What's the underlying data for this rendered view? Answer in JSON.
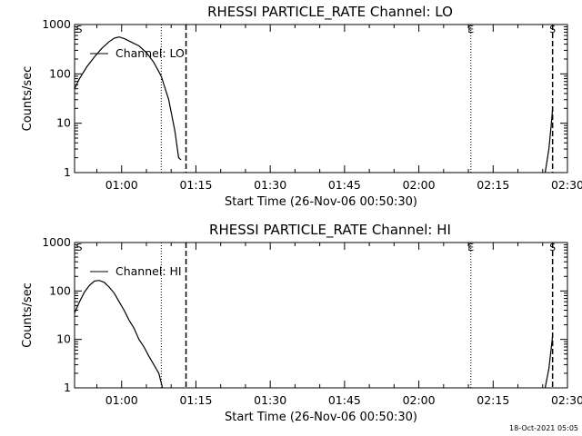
{
  "chart_data": [
    {
      "type": "line",
      "title": "RHESSI PARTICLE_RATE Channel: LO",
      "xlabel": "Start Time (26-Nov-06 00:50:30)",
      "ylabel": "Counts/sec",
      "y_scale": "log",
      "xlim": [
        "00:50:30",
        "02:30:00"
      ],
      "ylim": [
        1,
        1000
      ],
      "x_tick_labels": [
        "01:00",
        "01:15",
        "01:30",
        "01:45",
        "02:00",
        "02:15",
        "02:30"
      ],
      "y_tick_labels": [
        "1",
        "10",
        "100",
        "1000"
      ],
      "legend": "Channel: LO",
      "markers": [
        {
          "label": "S",
          "x": "00:50:30",
          "style": "dotted"
        },
        {
          "label": "",
          "x": "01:08:00",
          "style": "dotted"
        },
        {
          "label": "",
          "x": "01:13:00",
          "style": "dashed"
        },
        {
          "label": "E",
          "x": "02:10:30",
          "style": "dotted"
        },
        {
          "label": "S",
          "x": "02:27:00",
          "style": "dashed"
        }
      ],
      "series": [
        {
          "name": "Channel: LO",
          "x": [
            "00:50:30",
            "00:51:30",
            "00:53:00",
            "00:54:30",
            "00:56:00",
            "00:57:30",
            "00:58:30",
            "00:59:30",
            "01:00:30",
            "01:02:00",
            "01:03:30",
            "01:05:00",
            "01:06:30",
            "01:08:00",
            "01:09:30",
            "01:10:45",
            "01:11:30",
            "01:12:00"
          ],
          "values": [
            50,
            80,
            140,
            220,
            330,
            450,
            530,
            560,
            520,
            440,
            370,
            270,
            170,
            90,
            30,
            7,
            2,
            1.8
          ]
        },
        {
          "name": "Channel: LO",
          "x": [
            "02:25:30",
            "02:26:15",
            "02:26:45",
            "02:27:00"
          ],
          "values": [
            1,
            3,
            10,
            20
          ]
        }
      ]
    },
    {
      "type": "line",
      "title": "RHESSI PARTICLE_RATE Channel: HI",
      "xlabel": "Start Time (26-Nov-06 00:50:30)",
      "ylabel": "Counts/sec",
      "y_scale": "log",
      "xlim": [
        "00:50:30",
        "02:30:00"
      ],
      "ylim": [
        1,
        1000
      ],
      "x_tick_labels": [
        "01:00",
        "01:15",
        "01:30",
        "01:45",
        "02:00",
        "02:15",
        "02:30"
      ],
      "y_tick_labels": [
        "1",
        "10",
        "100",
        "1000"
      ],
      "legend": "Channel: HI",
      "markers": [
        {
          "label": "S",
          "x": "00:50:30",
          "style": "dotted"
        },
        {
          "label": "",
          "x": "01:08:00",
          "style": "dotted"
        },
        {
          "label": "",
          "x": "01:13:00",
          "style": "dashed"
        },
        {
          "label": "E",
          "x": "02:10:30",
          "style": "dotted"
        },
        {
          "label": "S",
          "x": "02:27:00",
          "style": "dashed"
        }
      ],
      "series": [
        {
          "name": "Channel: HI",
          "x": [
            "00:50:30",
            "00:51:30",
            "00:52:30",
            "00:53:30",
            "00:54:30",
            "00:55:30",
            "00:56:30",
            "00:57:30",
            "00:58:30",
            "00:59:30",
            "01:00:30",
            "01:01:30",
            "01:02:30",
            "01:03:30",
            "01:04:30",
            "01:05:30",
            "01:06:30",
            "01:07:30",
            "01:08:15"
          ],
          "values": [
            35,
            60,
            95,
            130,
            160,
            165,
            150,
            120,
            90,
            60,
            40,
            25,
            17,
            10,
            7,
            4.5,
            3,
            2,
            1
          ]
        },
        {
          "name": "Channel: HI",
          "x": [
            "02:25:30",
            "02:26:15",
            "02:26:45",
            "02:27:00"
          ],
          "values": [
            1,
            2.5,
            7,
            12
          ]
        }
      ]
    }
  ],
  "footer": {
    "timestamp": "18-Oct-2021 05:05"
  }
}
